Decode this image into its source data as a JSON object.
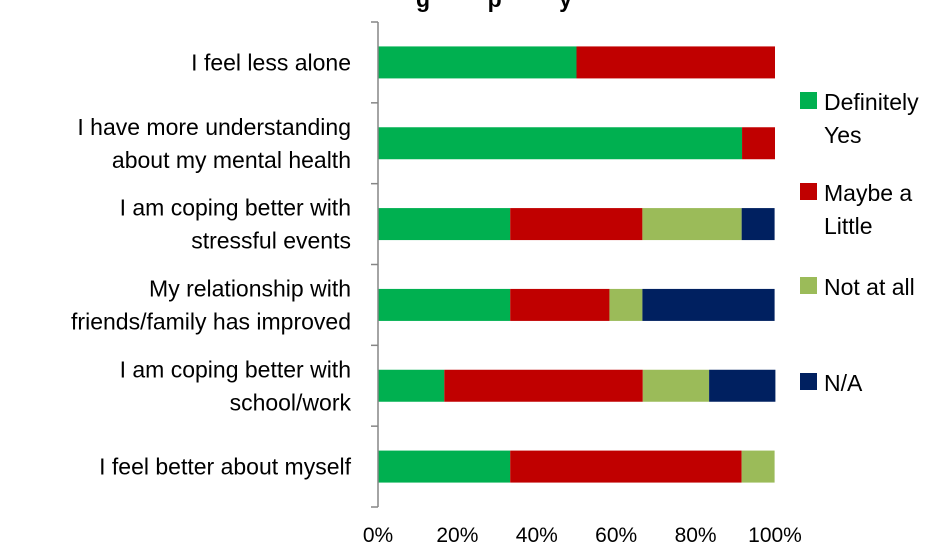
{
  "chart_data": {
    "type": "bar",
    "orientation": "horizontal",
    "stacked": "percent",
    "title_partial": "g         p         y",
    "categories": [
      [
        "I feel less alone"
      ],
      [
        "I have more understanding",
        "about my mental health"
      ],
      [
        "I am coping better with",
        "stressful events"
      ],
      [
        "My relationship with",
        "friends/family has improved"
      ],
      [
        "I am coping better with",
        "school/work"
      ],
      [
        "I feel better about myself"
      ]
    ],
    "series": [
      {
        "name": [
          "Definitely",
          "Yes"
        ],
        "color": "#00B050",
        "values": [
          50,
          91.7,
          33.3,
          33.3,
          16.7,
          33.3
        ]
      },
      {
        "name": [
          "Maybe a",
          "Little"
        ],
        "color": "#C00000",
        "values": [
          50,
          8.3,
          33.3,
          25.0,
          50.0,
          58.3
        ]
      },
      {
        "name": [
          "Not at all"
        ],
        "color": "#9BBB59",
        "values": [
          0,
          0,
          25.0,
          8.3,
          16.7,
          8.3
        ]
      },
      {
        "name": [
          "N/A"
        ],
        "color": "#002060",
        "values": [
          0,
          0,
          8.3,
          33.3,
          16.7,
          0
        ]
      }
    ],
    "xticks": [
      "0%",
      "20%",
      "40%",
      "60%",
      "80%",
      "100%"
    ],
    "xlim": [
      0,
      100
    ],
    "grid": false,
    "legend_position": "right"
  }
}
